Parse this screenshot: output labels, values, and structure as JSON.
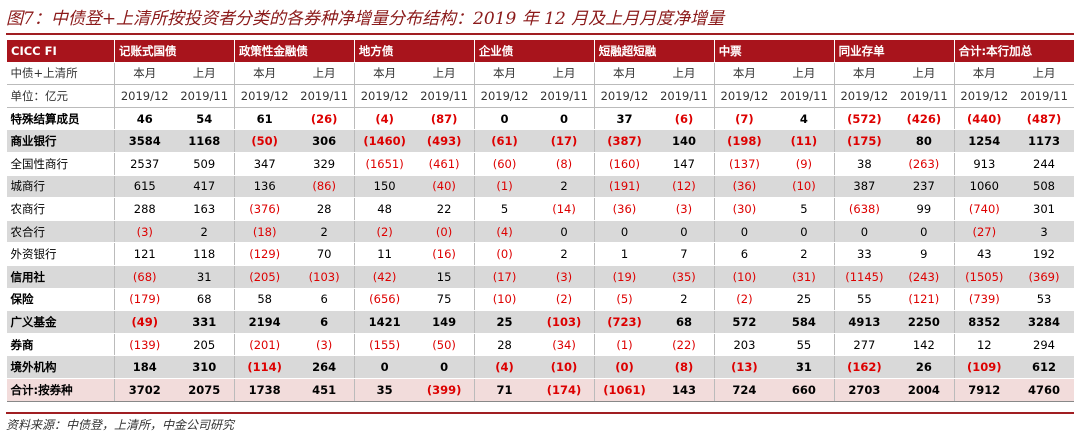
{
  "title": "图7：中债登+上清所按投资者分类的各券种净增量分布结构：2019 年 12 月及上月月度净增量",
  "table": {
    "header": {
      "corner": "CICC FI",
      "groups": [
        "记账式国债",
        "政策性金融债",
        "地方债",
        "企业债",
        "短融超短融",
        "中票",
        "同业存单",
        "合计:本行加总"
      ]
    },
    "subheader": {
      "label": "中债+上清所",
      "cells": [
        "本月",
        "上月",
        "本月",
        "上月",
        "本月",
        "上月",
        "本月",
        "上月",
        "本月",
        "上月",
        "本月",
        "上月",
        "本月",
        "上月",
        "本月",
        "上月"
      ]
    },
    "units": {
      "label": "单位：亿元",
      "cells": [
        "2019/12",
        "2019/11",
        "2019/12",
        "2019/11",
        "2019/12",
        "2019/11",
        "2019/12",
        "2019/11",
        "2019/12",
        "2019/11",
        "2019/12",
        "2019/11",
        "2019/12",
        "2019/11",
        "2019/12",
        "2019/11"
      ]
    },
    "rows": [
      {
        "label": "特殊结算成员",
        "cells": [
          "46",
          "54",
          "61",
          "(26)",
          "(4)",
          "(87)",
          "0",
          "0",
          "37",
          "(6)",
          "(7)",
          "4",
          "(572)",
          "(426)",
          "(440)",
          "(487)"
        ]
      },
      {
        "label": "商业银行",
        "cells": [
          "3584",
          "1168",
          "(50)",
          "306",
          "(1460)",
          "(493)",
          "(61)",
          "(17)",
          "(387)",
          "140",
          "(198)",
          "(11)",
          "(175)",
          "80",
          "1254",
          "1173"
        ]
      },
      {
        "label": "全国性商行",
        "cells": [
          "2537",
          "509",
          "347",
          "329",
          "(1651)",
          "(461)",
          "(60)",
          "(8)",
          "(160)",
          "147",
          "(137)",
          "(9)",
          "38",
          "(263)",
          "913",
          "244"
        ]
      },
      {
        "label": "城商行",
        "cells": [
          "615",
          "417",
          "136",
          "(86)",
          "150",
          "(40)",
          "(1)",
          "2",
          "(191)",
          "(12)",
          "(36)",
          "(10)",
          "387",
          "237",
          "1060",
          "508"
        ]
      },
      {
        "label": "农商行",
        "cells": [
          "288",
          "163",
          "(376)",
          "28",
          "48",
          "22",
          "5",
          "(14)",
          "(36)",
          "(3)",
          "(30)",
          "5",
          "(638)",
          "99",
          "(740)",
          "301"
        ]
      },
      {
        "label": "农合行",
        "cells": [
          "(3)",
          "2",
          "(18)",
          "2",
          "(2)",
          "(0)",
          "(4)",
          "0",
          "0",
          "0",
          "0",
          "0",
          "0",
          "0",
          "(27)",
          "3"
        ]
      },
      {
        "label": "外资银行",
        "cells": [
          "121",
          "118",
          "(129)",
          "70",
          "11",
          "(16)",
          "(0)",
          "2",
          "1",
          "7",
          "6",
          "2",
          "33",
          "9",
          "43",
          "192"
        ]
      },
      {
        "label": "信用社",
        "cells": [
          "(68)",
          "31",
          "(205)",
          "(103)",
          "(42)",
          "15",
          "(17)",
          "(3)",
          "(19)",
          "(35)",
          "(10)",
          "(31)",
          "(1145)",
          "(243)",
          "(1505)",
          "(369)"
        ]
      },
      {
        "label": "保险",
        "cells": [
          "(179)",
          "68",
          "58",
          "6",
          "(656)",
          "75",
          "(10)",
          "(2)",
          "(5)",
          "2",
          "(2)",
          "25",
          "55",
          "(121)",
          "(739)",
          "53"
        ]
      },
      {
        "label": "广义基金",
        "cells": [
          "(49)",
          "331",
          "2194",
          "6",
          "1421",
          "149",
          "25",
          "(103)",
          "(723)",
          "68",
          "572",
          "584",
          "4913",
          "2250",
          "8352",
          "3284"
        ]
      },
      {
        "label": "券商",
        "cells": [
          "(139)",
          "205",
          "(201)",
          "(3)",
          "(155)",
          "(50)",
          "28",
          "(34)",
          "(1)",
          "(22)",
          "203",
          "55",
          "277",
          "142",
          "12",
          "294"
        ]
      },
      {
        "label": "境外机构",
        "cells": [
          "184",
          "310",
          "(114)",
          "264",
          "0",
          "0",
          "(4)",
          "(10)",
          "(0)",
          "(8)",
          "(13)",
          "31",
          "(162)",
          "26",
          "(109)",
          "612"
        ]
      },
      {
        "label": "合计:按券种",
        "cells": [
          "3702",
          "2075",
          "1738",
          "451",
          "35",
          "(399)",
          "71",
          "(174)",
          "(1061)",
          "143",
          "724",
          "660",
          "2703",
          "2004",
          "7912",
          "4760"
        ]
      }
    ]
  },
  "source": "资料来源：中债登，上清所，中金公司研究"
}
